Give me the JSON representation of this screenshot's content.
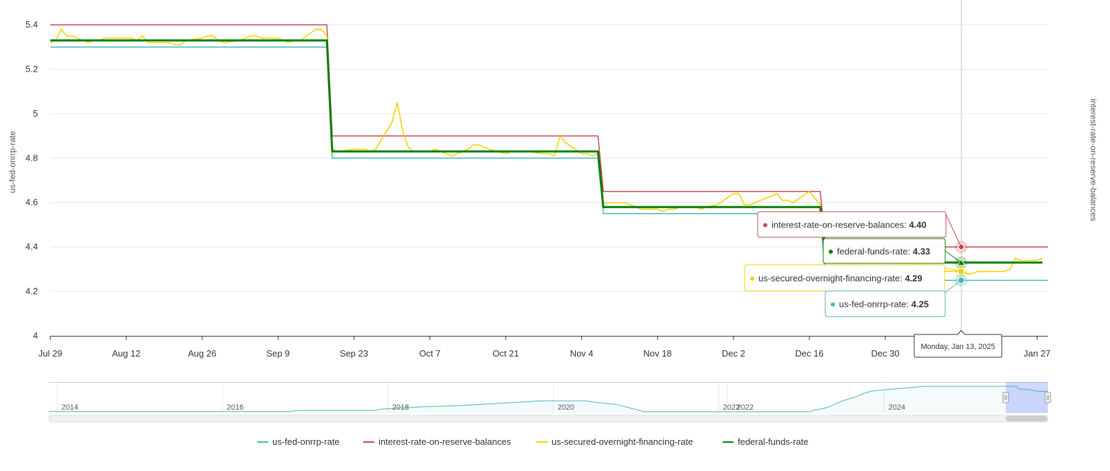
{
  "chart_data": {
    "type": "line",
    "left_axis_title": "us-fed-onrrp-rate",
    "right_axis_title": "interest-rate-on-reserve-balances",
    "ylim": [
      4,
      5.4
    ],
    "y_ticks": [
      "4",
      "4.2",
      "4.4",
      "4.6",
      "4.8",
      "5",
      "5.2",
      "5.4"
    ],
    "x_range": [
      "2024-07-29",
      "2025-01-29"
    ],
    "x_ticks": [
      {
        "date": "2024-07-29",
        "label": "Jul 29"
      },
      {
        "date": "2024-08-12",
        "label": "Aug 12"
      },
      {
        "date": "2024-08-26",
        "label": "Aug 26"
      },
      {
        "date": "2024-09-09",
        "label": "Sep 9"
      },
      {
        "date": "2024-09-23",
        "label": "Sep 23"
      },
      {
        "date": "2024-10-07",
        "label": "Oct 7"
      },
      {
        "date": "2024-10-21",
        "label": "Oct 21"
      },
      {
        "date": "2024-11-04",
        "label": "Nov 4"
      },
      {
        "date": "2024-11-18",
        "label": "Nov 18"
      },
      {
        "date": "2024-12-02",
        "label": "Dec 2"
      },
      {
        "date": "2024-12-16",
        "label": "Dec 16"
      },
      {
        "date": "2024-12-30",
        "label": "Dec 30"
      },
      {
        "date": "2025-01-27",
        "label": "Jan 27"
      }
    ],
    "grid": true,
    "legend_position": "bottom",
    "series": [
      {
        "name": "us-fed-onrrp-rate",
        "color": "#45b5b8",
        "points": [
          {
            "x": "2024-07-29",
            "y": 5.3
          },
          {
            "x": "2024-09-18",
            "y": 5.3
          },
          {
            "x": "2024-09-19",
            "y": 4.8
          },
          {
            "x": "2024-11-07",
            "y": 4.8
          },
          {
            "x": "2024-11-08",
            "y": 4.55
          },
          {
            "x": "2024-12-18",
            "y": 4.55
          },
          {
            "x": "2024-12-19",
            "y": 4.25
          },
          {
            "x": "2025-01-29",
            "y": 4.25
          }
        ]
      },
      {
        "name": "interest-rate-on-reserve-balances",
        "color": "#c0474e",
        "points": [
          {
            "x": "2024-07-29",
            "y": 5.4
          },
          {
            "x": "2024-09-18",
            "y": 5.4
          },
          {
            "x": "2024-09-19",
            "y": 4.9
          },
          {
            "x": "2024-11-07",
            "y": 4.9
          },
          {
            "x": "2024-11-08",
            "y": 4.65
          },
          {
            "x": "2024-12-18",
            "y": 4.65
          },
          {
            "x": "2024-12-19",
            "y": 4.4
          },
          {
            "x": "2025-01-29",
            "y": 4.4
          }
        ]
      },
      {
        "name": "us-secured-overnight-financing-rate",
        "color": "#f5d000",
        "points": [
          {
            "x": "2024-07-29",
            "y": 5.32
          },
          {
            "x": "2024-07-30",
            "y": 5.33
          },
          {
            "x": "2024-07-31",
            "y": 5.38
          },
          {
            "x": "2024-08-01",
            "y": 5.35
          },
          {
            "x": "2024-08-02",
            "y": 5.35
          },
          {
            "x": "2024-08-05",
            "y": 5.32
          },
          {
            "x": "2024-08-06",
            "y": 5.33
          },
          {
            "x": "2024-08-07",
            "y": 5.33
          },
          {
            "x": "2024-08-08",
            "y": 5.34
          },
          {
            "x": "2024-08-09",
            "y": 5.34
          },
          {
            "x": "2024-08-12",
            "y": 5.34
          },
          {
            "x": "2024-08-13",
            "y": 5.34
          },
          {
            "x": "2024-08-14",
            "y": 5.33
          },
          {
            "x": "2024-08-15",
            "y": 5.35
          },
          {
            "x": "2024-08-16",
            "y": 5.32
          },
          {
            "x": "2024-08-19",
            "y": 5.32
          },
          {
            "x": "2024-08-20",
            "y": 5.32
          },
          {
            "x": "2024-08-21",
            "y": 5.31
          },
          {
            "x": "2024-08-22",
            "y": 5.31
          },
          {
            "x": "2024-08-23",
            "y": 5.33
          },
          {
            "x": "2024-08-26",
            "y": 5.34
          },
          {
            "x": "2024-08-27",
            "y": 5.35
          },
          {
            "x": "2024-08-28",
            "y": 5.35
          },
          {
            "x": "2024-08-29",
            "y": 5.33
          },
          {
            "x": "2024-08-30",
            "y": 5.32
          },
          {
            "x": "2024-09-02",
            "y": 5.33
          },
          {
            "x": "2024-09-03",
            "y": 5.34
          },
          {
            "x": "2024-09-04",
            "y": 5.35
          },
          {
            "x": "2024-09-05",
            "y": 5.35
          },
          {
            "x": "2024-09-06",
            "y": 5.34
          },
          {
            "x": "2024-09-09",
            "y": 5.34
          },
          {
            "x": "2024-09-10",
            "y": 5.33
          },
          {
            "x": "2024-09-11",
            "y": 5.32
          },
          {
            "x": "2024-09-12",
            "y": 5.33
          },
          {
            "x": "2024-09-13",
            "y": 5.33
          },
          {
            "x": "2024-09-16",
            "y": 5.38
          },
          {
            "x": "2024-09-17",
            "y": 5.38
          },
          {
            "x": "2024-09-18",
            "y": 5.35
          },
          {
            "x": "2024-09-19",
            "y": 4.84
          },
          {
            "x": "2024-09-20",
            "y": 4.83
          },
          {
            "x": "2024-09-23",
            "y": 4.84
          },
          {
            "x": "2024-09-24",
            "y": 4.84
          },
          {
            "x": "2024-09-25",
            "y": 4.84
          },
          {
            "x": "2024-09-26",
            "y": 4.83
          },
          {
            "x": "2024-09-27",
            "y": 4.84
          },
          {
            "x": "2024-09-30",
            "y": 4.96
          },
          {
            "x": "2024-10-01",
            "y": 5.05
          },
          {
            "x": "2024-10-02",
            "y": 4.92
          },
          {
            "x": "2024-10-03",
            "y": 4.85
          },
          {
            "x": "2024-10-04",
            "y": 4.83
          },
          {
            "x": "2024-10-07",
            "y": 4.83
          },
          {
            "x": "2024-10-08",
            "y": 4.84
          },
          {
            "x": "2024-10-09",
            "y": 4.83
          },
          {
            "x": "2024-10-10",
            "y": 4.82
          },
          {
            "x": "2024-10-11",
            "y": 4.81
          },
          {
            "x": "2024-10-14",
            "y": 4.84
          },
          {
            "x": "2024-10-15",
            "y": 4.86
          },
          {
            "x": "2024-10-16",
            "y": 4.86
          },
          {
            "x": "2024-10-17",
            "y": 4.85
          },
          {
            "x": "2024-10-18",
            "y": 4.84
          },
          {
            "x": "2024-10-21",
            "y": 4.82
          },
          {
            "x": "2024-10-22",
            "y": 4.83
          },
          {
            "x": "2024-10-23",
            "y": 4.83
          },
          {
            "x": "2024-10-24",
            "y": 4.83
          },
          {
            "x": "2024-10-25",
            "y": 4.83
          },
          {
            "x": "2024-10-28",
            "y": 4.82
          },
          {
            "x": "2024-10-29",
            "y": 4.82
          },
          {
            "x": "2024-10-30",
            "y": 4.81
          },
          {
            "x": "2024-10-31",
            "y": 4.9
          },
          {
            "x": "2024-11-01",
            "y": 4.87
          },
          {
            "x": "2024-11-04",
            "y": 4.82
          },
          {
            "x": "2024-11-05",
            "y": 4.82
          },
          {
            "x": "2024-11-06",
            "y": 4.81
          },
          {
            "x": "2024-11-07",
            "y": 4.82
          },
          {
            "x": "2024-11-08",
            "y": 4.6
          },
          {
            "x": "2024-11-12",
            "y": 4.6
          },
          {
            "x": "2024-11-13",
            "y": 4.59
          },
          {
            "x": "2024-11-14",
            "y": 4.58
          },
          {
            "x": "2024-11-15",
            "y": 4.57
          },
          {
            "x": "2024-11-18",
            "y": 4.57
          },
          {
            "x": "2024-11-19",
            "y": 4.56
          },
          {
            "x": "2024-11-20",
            "y": 4.57
          },
          {
            "x": "2024-11-21",
            "y": 4.57
          },
          {
            "x": "2024-11-22",
            "y": 4.58
          },
          {
            "x": "2024-11-25",
            "y": 4.58
          },
          {
            "x": "2024-11-26",
            "y": 4.57
          },
          {
            "x": "2024-11-27",
            "y": 4.58
          },
          {
            "x": "2024-11-29",
            "y": 4.59
          },
          {
            "x": "2024-12-02",
            "y": 4.64
          },
          {
            "x": "2024-12-03",
            "y": 4.64
          },
          {
            "x": "2024-12-04",
            "y": 4.59
          },
          {
            "x": "2024-12-05",
            "y": 4.59
          },
          {
            "x": "2024-12-06",
            "y": 4.6
          },
          {
            "x": "2024-12-09",
            "y": 4.63
          },
          {
            "x": "2024-12-10",
            "y": 4.64
          },
          {
            "x": "2024-12-11",
            "y": 4.61
          },
          {
            "x": "2024-12-12",
            "y": 4.61
          },
          {
            "x": "2024-12-13",
            "y": 4.6
          },
          {
            "x": "2024-12-16",
            "y": 4.65
          },
          {
            "x": "2024-12-17",
            "y": 4.62
          },
          {
            "x": "2024-12-18",
            "y": 4.59
          },
          {
            "x": "2024-12-19",
            "y": 4.3
          },
          {
            "x": "2025-01-13",
            "y": 4.29
          },
          {
            "x": "2025-01-14",
            "y": 4.28
          },
          {
            "x": "2025-01-15",
            "y": 4.28
          },
          {
            "x": "2025-01-16",
            "y": 4.29
          },
          {
            "x": "2025-01-17",
            "y": 4.29
          },
          {
            "x": "2025-01-21",
            "y": 4.29
          },
          {
            "x": "2025-01-22",
            "y": 4.3
          },
          {
            "x": "2025-01-23",
            "y": 4.35
          },
          {
            "x": "2025-01-24",
            "y": 4.34
          },
          {
            "x": "2025-01-27",
            "y": 4.34
          },
          {
            "x": "2025-01-28",
            "y": 4.35
          }
        ]
      },
      {
        "name": "federal-funds-rate",
        "color": "#008000",
        "points": [
          {
            "x": "2024-07-29",
            "y": 5.33
          },
          {
            "x": "2024-09-18",
            "y": 5.33
          },
          {
            "x": "2024-09-19",
            "y": 4.83
          },
          {
            "x": "2024-11-07",
            "y": 4.83
          },
          {
            "x": "2024-11-08",
            "y": 4.58
          },
          {
            "x": "2024-12-18",
            "y": 4.58
          },
          {
            "x": "2024-12-19",
            "y": 4.33
          },
          {
            "x": "2025-01-28",
            "y": 4.33
          }
        ]
      }
    ],
    "hover": {
      "date": "2025-01-13",
      "date_label": "Monday, Jan 13, 2025",
      "entries": [
        {
          "name": "interest-rate-on-reserve-balances",
          "value": "4.40",
          "y": 4.4,
          "color": "#c0474e"
        },
        {
          "name": "federal-funds-rate",
          "value": "4.33",
          "y": 4.33,
          "color": "#008000"
        },
        {
          "name": "us-secured-overnight-financing-rate",
          "value": "4.29",
          "y": 4.29,
          "color": "#f5d000"
        },
        {
          "name": "us-fed-onrrp-rate",
          "value": "4.25",
          "y": 4.25,
          "color": "#45b5b8"
        }
      ]
    },
    "navigator": {
      "year_labels": [
        "2014",
        "2016",
        "2018",
        "2020",
        "2022",
        "2022",
        "2024"
      ],
      "range_x": [
        2013.0,
        2025.08
      ],
      "series": [
        [
          2013.0,
          0.05
        ],
        [
          2015.9,
          0.05
        ],
        [
          2016.0,
          0.25
        ],
        [
          2016.95,
          0.25
        ],
        [
          2017.0,
          0.5
        ],
        [
          2017.2,
          0.75
        ],
        [
          2017.5,
          1.0
        ],
        [
          2017.95,
          1.25
        ],
        [
          2018.2,
          1.5
        ],
        [
          2018.45,
          1.75
        ],
        [
          2018.7,
          2.0
        ],
        [
          2018.95,
          2.25
        ],
        [
          2019.5,
          2.25
        ],
        [
          2019.6,
          2.0
        ],
        [
          2019.7,
          1.8
        ],
        [
          2019.85,
          1.55
        ],
        [
          2020.2,
          0.0
        ],
        [
          2022.2,
          0.0
        ],
        [
          2022.25,
          0.3
        ],
        [
          2022.4,
          0.8
        ],
        [
          2022.5,
          1.55
        ],
        [
          2022.6,
          2.3
        ],
        [
          2022.75,
          3.05
        ],
        [
          2022.85,
          3.8
        ],
        [
          2022.95,
          4.3
        ],
        [
          2023.1,
          4.55
        ],
        [
          2023.25,
          4.8
        ],
        [
          2023.45,
          5.05
        ],
        [
          2023.6,
          5.3
        ],
        [
          2024.7,
          5.3
        ],
        [
          2024.72,
          4.8
        ],
        [
          2024.85,
          4.55
        ],
        [
          2024.97,
          4.25
        ],
        [
          2025.08,
          4.25
        ]
      ],
      "ymax": 5.6,
      "selected": [
        2024.57,
        2025.08
      ]
    }
  },
  "legend": {
    "items": [
      {
        "name": "us-fed-onrrp-rate",
        "color": "#45b5b8"
      },
      {
        "name": "interest-rate-on-reserve-balances",
        "color": "#c0474e"
      },
      {
        "name": "us-secured-overnight-financing-rate",
        "color": "#f5d000"
      },
      {
        "name": "federal-funds-rate",
        "color": "#008000"
      }
    ]
  }
}
